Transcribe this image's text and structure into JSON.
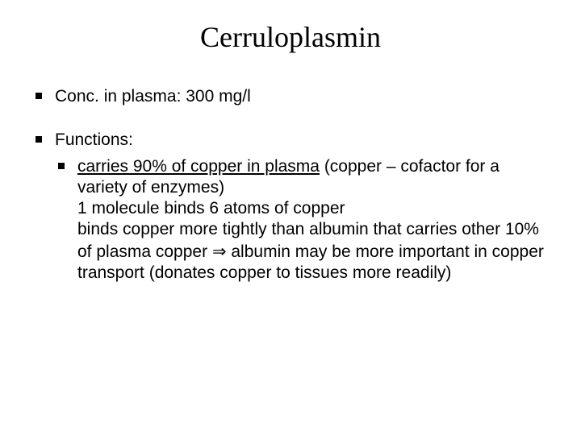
{
  "title": "Cerruloplasmin",
  "bullets": {
    "b1": "Conc. in plasma: 300 mg/l",
    "b2_label": "Functions:",
    "b2_sub1_u": "carries 90% of copper in plasma",
    "b2_sub1_rest": " (copper – cofactor for a variety of enzymes)",
    "b2_sub1_line2": "1 molecule binds 6 atoms of copper",
    "b2_sub1_line3a": "binds copper more tightly than albumin that carries other 10% of plasma copper ",
    "arrow": "⇒",
    "b2_sub1_line3b": " albumin may be more important in copper transport (donates copper to tissues more readily)"
  },
  "colors": {
    "background": "#ffffff",
    "text": "#000000",
    "bullet": "#000000"
  },
  "fonts": {
    "title_family": "Times New Roman",
    "title_size_pt": 27,
    "body_family": "Arial",
    "body_size_pt": 16
  }
}
